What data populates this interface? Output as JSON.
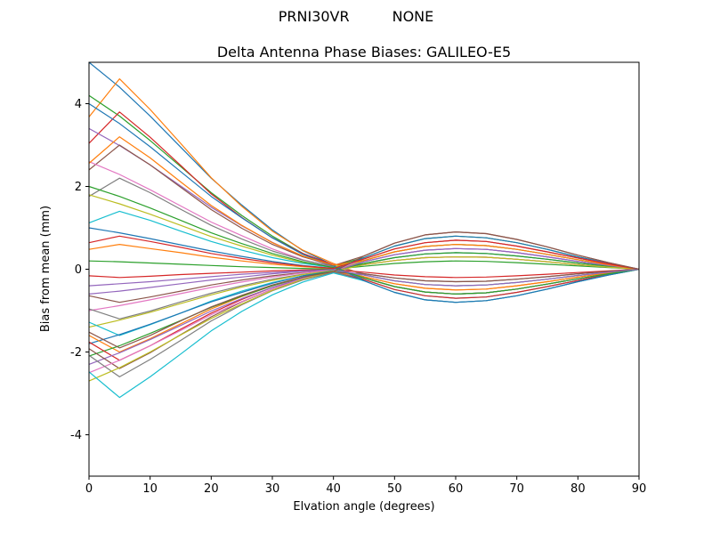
{
  "figure": {
    "suptitle_left": "PRNI30VR",
    "suptitle_right": "NONE",
    "title": "Delta Antenna Phase Biases: GALILEO-E5"
  },
  "chart_data": {
    "type": "line",
    "title": "Delta Antenna Phase Biases: GALILEO-E5",
    "suptitle_left": "PRNI30VR",
    "suptitle_right": "NONE",
    "xlabel": "Elvation angle (degrees)",
    "ylabel": "Bias from mean (mm)",
    "xlim": [
      0,
      90
    ],
    "ylim": [
      -5,
      5
    ],
    "xticks": [
      0,
      10,
      20,
      30,
      40,
      50,
      60,
      70,
      80,
      90
    ],
    "yticks": [
      -4,
      -2,
      0,
      2,
      4
    ],
    "grid": false,
    "legend_position": "none",
    "palette": [
      "#1f77b4",
      "#ff7f0e",
      "#2ca02c",
      "#d62728",
      "#9467bd",
      "#8c564b",
      "#e377c2",
      "#7f7f7f",
      "#bcbd22",
      "#17becf"
    ],
    "x": [
      0,
      5,
      10,
      15,
      20,
      25,
      30,
      35,
      40,
      45,
      50,
      55,
      60,
      65,
      70,
      75,
      80,
      85,
      90
    ],
    "series": [
      {
        "color": "#1f77b4",
        "values": [
          5.0,
          4.4,
          3.7,
          2.95,
          2.2,
          1.55,
          0.95,
          0.45,
          0.1,
          0.21,
          0.42,
          0.55,
          0.6,
          0.57,
          0.48,
          0.36,
          0.23,
          0.11,
          0
        ]
      },
      {
        "color": "#ff7f0e",
        "values": [
          3.68,
          4.6,
          3.86,
          3.04,
          2.21,
          1.52,
          0.92,
          0.46,
          0.14,
          -0.14,
          -0.28,
          -0.37,
          -0.4,
          -0.38,
          -0.32,
          -0.24,
          -0.15,
          -0.07,
          0
        ]
      },
      {
        "color": "#2ca02c",
        "values": [
          4.2,
          3.7,
          3.11,
          2.48,
          1.85,
          1.3,
          0.8,
          0.38,
          0.08,
          0.28,
          0.56,
          0.74,
          0.8,
          0.76,
          0.64,
          0.48,
          0.3,
          0.14,
          0
        ]
      },
      {
        "color": "#d62728",
        "values": [
          3.04,
          3.8,
          3.19,
          2.51,
          1.82,
          1.25,
          0.76,
          0.38,
          0.11,
          0.11,
          0.21,
          0.28,
          0.3,
          0.29,
          0.24,
          0.18,
          0.11,
          0.05,
          0
        ]
      },
      {
        "color": "#9467bd",
        "values": [
          3.4,
          2.99,
          2.52,
          2.01,
          1.5,
          1.05,
          0.65,
          0.31,
          0.07,
          -0.21,
          -0.42,
          -0.55,
          -0.6,
          -0.57,
          -0.48,
          -0.36,
          -0.23,
          -0.11,
          0
        ]
      },
      {
        "color": "#8c564b",
        "values": [
          2.4,
          3.0,
          2.52,
          1.98,
          1.44,
          0.99,
          0.6,
          0.3,
          0.09,
          0.32,
          0.63,
          0.83,
          0.9,
          0.86,
          0.72,
          0.54,
          0.34,
          0.16,
          0
        ]
      },
      {
        "color": "#e377c2",
        "values": [
          2.6,
          2.29,
          1.92,
          1.53,
          1.14,
          0.81,
          0.49,
          0.23,
          0.05,
          0.18,
          0.35,
          0.46,
          0.5,
          0.48,
          0.4,
          0.3,
          0.19,
          0.09,
          0
        ]
      },
      {
        "color": "#7f7f7f",
        "values": [
          1.76,
          2.2,
          1.85,
          1.45,
          1.06,
          0.73,
          0.44,
          0.22,
          0.07,
          -0.11,
          -0.21,
          -0.28,
          -0.3,
          -0.29,
          -0.24,
          -0.18,
          -0.11,
          -0.05,
          0
        ]
      },
      {
        "color": "#bcbd22",
        "values": [
          1.8,
          1.58,
          1.33,
          1.06,
          0.79,
          0.56,
          0.34,
          0.16,
          0.04,
          0.25,
          0.49,
          0.64,
          0.7,
          0.67,
          0.56,
          0.42,
          0.27,
          0.13,
          0
        ]
      },
      {
        "color": "#17becf",
        "values": [
          1.12,
          1.4,
          1.18,
          0.92,
          0.67,
          0.46,
          0.28,
          0.14,
          0.04,
          -0.25,
          -0.49,
          -0.64,
          -0.7,
          -0.67,
          -0.56,
          -0.42,
          -0.27,
          -0.13,
          0
        ]
      },
      {
        "color": "#1f77b4",
        "values": [
          1.0,
          0.88,
          0.74,
          0.59,
          0.44,
          0.31,
          0.19,
          0.09,
          0.02,
          0.14,
          0.28,
          0.37,
          0.4,
          0.38,
          0.32,
          0.24,
          0.15,
          0.07,
          0
        ]
      },
      {
        "color": "#ff7f0e",
        "values": [
          0.48,
          0.6,
          0.5,
          0.4,
          0.29,
          0.2,
          0.12,
          0.06,
          0.02,
          -0.18,
          -0.35,
          -0.46,
          -0.5,
          -0.48,
          -0.4,
          -0.3,
          -0.19,
          -0.09,
          0
        ]
      },
      {
        "color": "#2ca02c",
        "values": [
          0.2,
          0.18,
          0.15,
          0.12,
          0.09,
          0.06,
          0.04,
          0.02,
          0.0,
          0.07,
          0.14,
          0.18,
          0.2,
          0.19,
          0.16,
          0.12,
          0.08,
          0.04,
          0
        ]
      },
      {
        "color": "#d62728",
        "values": [
          -0.16,
          -0.2,
          -0.17,
          -0.13,
          -0.1,
          -0.07,
          -0.04,
          -0.02,
          -0.01,
          -0.07,
          -0.14,
          -0.18,
          -0.2,
          -0.19,
          -0.16,
          -0.12,
          -0.08,
          -0.04,
          0
        ]
      },
      {
        "color": "#9467bd",
        "values": [
          -0.6,
          -0.53,
          -0.44,
          -0.35,
          -0.26,
          -0.19,
          -0.11,
          -0.05,
          -0.01,
          0.18,
          0.35,
          0.46,
          0.5,
          0.48,
          0.4,
          0.3,
          0.19,
          0.09,
          0
        ]
      },
      {
        "color": "#8c564b",
        "values": [
          -0.64,
          -0.8,
          -0.67,
          -0.53,
          -0.38,
          -0.26,
          -0.16,
          -0.08,
          -0.02,
          -0.21,
          -0.42,
          -0.55,
          -0.6,
          -0.57,
          -0.48,
          -0.36,
          -0.23,
          -0.11,
          0
        ]
      },
      {
        "color": "#e377c2",
        "values": [
          -1.0,
          -0.88,
          -0.74,
          -0.59,
          -0.44,
          -0.31,
          -0.19,
          -0.09,
          -0.02,
          0.11,
          0.21,
          0.28,
          0.3,
          0.29,
          0.24,
          0.18,
          0.11,
          0.05,
          0
        ]
      },
      {
        "color": "#7f7f7f",
        "values": [
          -0.96,
          -1.2,
          -1.01,
          -0.79,
          -0.58,
          -0.4,
          -0.24,
          -0.12,
          -0.04,
          -0.28,
          -0.56,
          -0.74,
          -0.8,
          -0.76,
          -0.64,
          -0.48,
          -0.3,
          -0.14,
          0
        ]
      },
      {
        "color": "#bcbd22",
        "values": [
          -1.4,
          -1.23,
          -1.04,
          -0.83,
          -0.62,
          -0.43,
          -0.27,
          -0.13,
          -0.03,
          0.21,
          0.42,
          0.55,
          0.6,
          0.57,
          0.48,
          0.36,
          0.23,
          0.11,
          0
        ]
      },
      {
        "color": "#17becf",
        "values": [
          -1.28,
          -1.6,
          -1.34,
          -1.06,
          -0.77,
          -0.53,
          -0.32,
          -0.16,
          -0.05,
          -0.14,
          -0.28,
          -0.37,
          -0.4,
          -0.38,
          -0.32,
          -0.24,
          -0.15,
          -0.07,
          0
        ]
      },
      {
        "color": "#1f77b4",
        "values": [
          -1.8,
          -1.58,
          -1.33,
          -1.06,
          -0.79,
          -0.56,
          -0.34,
          -0.16,
          -0.04,
          0.28,
          0.56,
          0.74,
          0.8,
          0.76,
          0.64,
          0.48,
          0.3,
          0.14,
          0
        ]
      },
      {
        "color": "#ff7f0e",
        "values": [
          -1.6,
          -2.0,
          -1.68,
          -1.32,
          -0.96,
          -0.66,
          -0.4,
          -0.2,
          -0.06,
          -0.18,
          -0.35,
          -0.46,
          -0.5,
          -0.48,
          -0.4,
          -0.3,
          -0.19,
          -0.09,
          0
        ]
      },
      {
        "color": "#2ca02c",
        "values": [
          -2.1,
          -1.85,
          -1.55,
          -1.24,
          -0.92,
          -0.65,
          -0.4,
          -0.19,
          -0.04,
          0.14,
          0.28,
          0.37,
          0.4,
          0.38,
          0.32,
          0.24,
          0.15,
          0.07,
          0
        ]
      },
      {
        "color": "#d62728",
        "values": [
          -1.76,
          -2.2,
          -1.85,
          -1.45,
          -1.06,
          -0.73,
          -0.44,
          -0.22,
          -0.07,
          -0.25,
          -0.49,
          -0.64,
          -0.7,
          -0.67,
          -0.56,
          -0.42,
          -0.27,
          -0.13,
          0
        ]
      },
      {
        "color": "#9467bd",
        "values": [
          -2.3,
          -2.02,
          -1.7,
          -1.36,
          -1.01,
          -0.71,
          -0.44,
          -0.21,
          -0.05,
          0.18,
          0.35,
          0.46,
          0.5,
          0.48,
          0.4,
          0.3,
          0.19,
          0.09,
          0
        ]
      },
      {
        "color": "#8c564b",
        "values": [
          -1.92,
          -2.4,
          -2.02,
          -1.58,
          -1.15,
          -0.79,
          -0.48,
          -0.24,
          -0.07,
          -0.11,
          -0.21,
          -0.28,
          -0.3,
          -0.29,
          -0.24,
          -0.18,
          -0.11,
          -0.05,
          0
        ]
      },
      {
        "color": "#e377c2",
        "values": [
          -2.5,
          -2.2,
          -1.85,
          -1.48,
          -1.1,
          -0.78,
          -0.48,
          -0.23,
          -0.05,
          0.25,
          0.49,
          0.64,
          0.7,
          0.67,
          0.56,
          0.42,
          0.27,
          0.13,
          0
        ]
      },
      {
        "color": "#7f7f7f",
        "values": [
          -2.08,
          -2.6,
          -2.18,
          -1.72,
          -1.25,
          -0.86,
          -0.52,
          -0.26,
          -0.08,
          -0.21,
          -0.42,
          -0.55,
          -0.6,
          -0.57,
          -0.48,
          -0.36,
          -0.23,
          -0.11,
          0
        ]
      },
      {
        "color": "#bcbd22",
        "values": [
          -2.7,
          -2.38,
          -2.0,
          -1.59,
          -1.19,
          -0.84,
          -0.51,
          -0.24,
          -0.05,
          0.11,
          0.21,
          0.28,
          0.3,
          0.29,
          0.24,
          0.18,
          0.11,
          0.05,
          0
        ]
      },
      {
        "color": "#17becf",
        "values": [
          -2.48,
          -3.1,
          -2.6,
          -2.05,
          -1.49,
          -1.02,
          -0.62,
          -0.31,
          -0.09,
          -0.28,
          -0.56,
          -0.74,
          -0.8,
          -0.76,
          -0.64,
          -0.48,
          -0.3,
          -0.14,
          0
        ]
      },
      {
        "color": "#1f77b4",
        "values": [
          4.0,
          3.52,
          2.96,
          2.36,
          1.76,
          1.24,
          0.76,
          0.36,
          0.08,
          -0.28,
          -0.56,
          -0.74,
          -0.8,
          -0.76,
          -0.64,
          -0.48,
          -0.3,
          -0.14,
          0
        ]
      },
      {
        "color": "#ff7f0e",
        "values": [
          2.56,
          3.2,
          2.69,
          2.11,
          1.54,
          1.06,
          0.64,
          0.32,
          0.1,
          0.21,
          0.42,
          0.55,
          0.6,
          0.57,
          0.48,
          0.36,
          0.23,
          0.11,
          0
        ]
      },
      {
        "color": "#2ca02c",
        "values": [
          2.0,
          1.76,
          1.48,
          1.18,
          0.88,
          0.62,
          0.38,
          0.18,
          0.04,
          -0.21,
          -0.42,
          -0.55,
          -0.6,
          -0.57,
          -0.48,
          -0.36,
          -0.23,
          -0.11,
          0
        ]
      },
      {
        "color": "#d62728",
        "values": [
          0.64,
          0.8,
          0.67,
          0.53,
          0.38,
          0.26,
          0.16,
          0.08,
          0.02,
          0.25,
          0.49,
          0.64,
          0.7,
          0.67,
          0.56,
          0.42,
          0.27,
          0.13,
          0
        ]
      },
      {
        "color": "#9467bd",
        "values": [
          -0.4,
          -0.35,
          -0.3,
          -0.24,
          -0.18,
          -0.12,
          -0.08,
          -0.04,
          -0.01,
          -0.14,
          -0.28,
          -0.37,
          -0.4,
          -0.38,
          -0.32,
          -0.24,
          -0.15,
          -0.07,
          0
        ]
      },
      {
        "color": "#8c564b",
        "values": [
          -1.52,
          -1.9,
          -1.6,
          -1.25,
          -0.91,
          -0.63,
          -0.38,
          -0.19,
          -0.06,
          0.32,
          0.63,
          0.83,
          0.9,
          0.86,
          0.72,
          0.54,
          0.34,
          0.16,
          0
        ]
      }
    ]
  }
}
